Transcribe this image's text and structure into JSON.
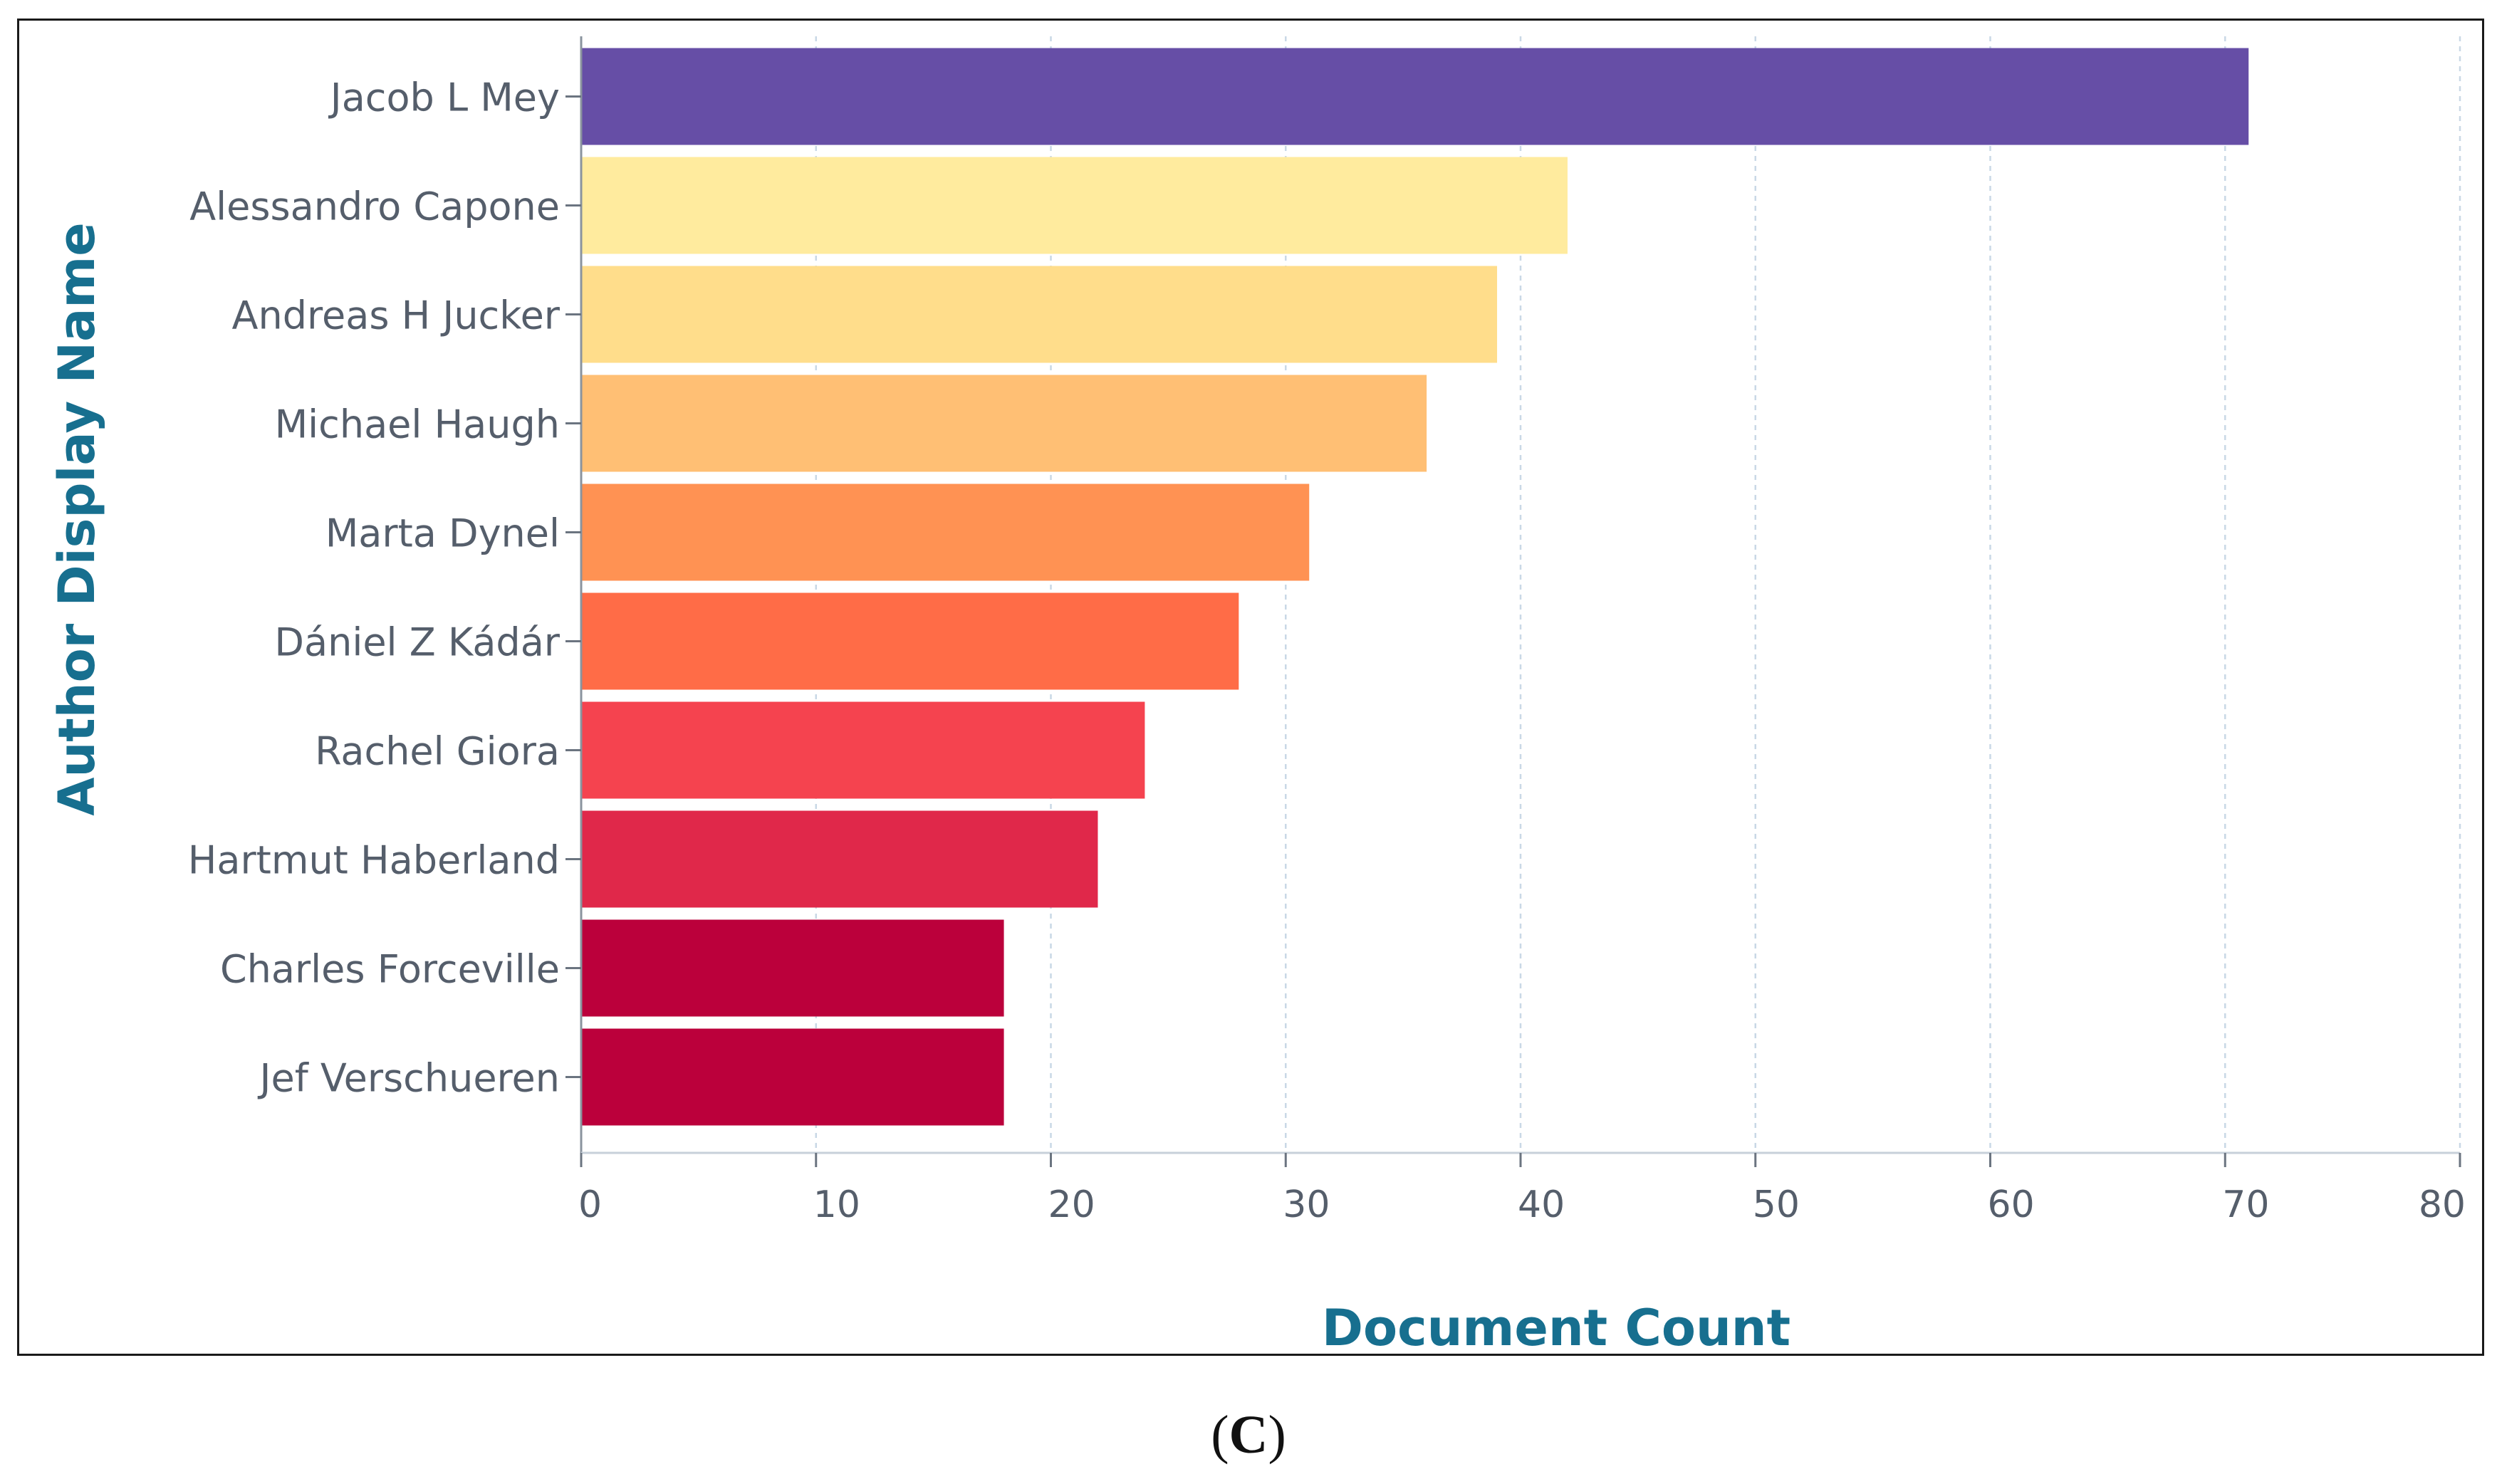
{
  "panel_label": "(C)",
  "chart_data": {
    "type": "bar",
    "orientation": "horizontal",
    "title": "",
    "xlabel": "Document Count",
    "ylabel": "Author Display Name",
    "xlim": [
      0,
      80
    ],
    "x_ticks": [
      0,
      10,
      20,
      30,
      40,
      50,
      60,
      70,
      80
    ],
    "grid": "vertical dashed",
    "legend": "none",
    "categories": [
      "Jacob L Mey",
      "Alessandro Capone",
      "Andreas H Jucker",
      "Michael Haugh",
      "Marta Dynel",
      "Dániel Z Kádár",
      "Rachel Giora",
      "Hartmut Haberland",
      "Charles Forceville",
      "Jef Verschueren"
    ],
    "values": [
      71,
      42,
      39,
      36,
      31,
      28,
      24,
      22,
      18,
      18
    ],
    "colors": [
      "#664ea6",
      "#ffeb9e",
      "#ffdd8b",
      "#ffbf74",
      "#ff9253",
      "#ff6c47",
      "#f5434f",
      "#e0284a",
      "#bb003b",
      "#bb003b"
    ],
    "label_color": "#555e6b",
    "axis_title_color": "#176f8f"
  }
}
